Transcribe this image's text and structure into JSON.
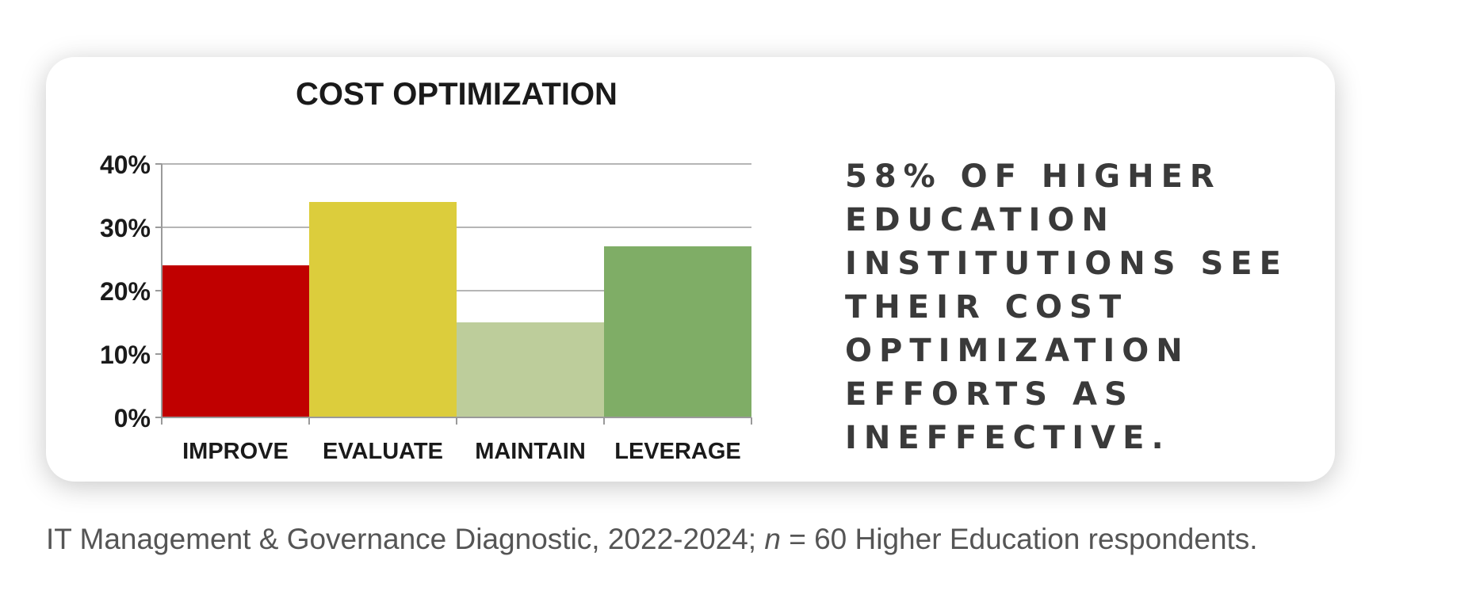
{
  "chart_data": {
    "type": "bar",
    "title": "COST OPTIMIZATION",
    "categories": [
      "IMPROVE",
      "EVALUATE",
      "MAINTAIN",
      "LEVERAGE"
    ],
    "values": [
      24,
      34,
      15,
      27
    ],
    "colors": [
      "#c00000",
      "#dccd3c",
      "#bdcd9b",
      "#7fad66"
    ],
    "yticks": [
      "0%",
      "10%",
      "20%",
      "30%",
      "40%"
    ],
    "ylim": [
      0,
      40
    ],
    "grid": true,
    "legend": "none"
  },
  "stat_text": "58% of higher education institutions see their cost optimization efforts as ineffective.",
  "caption": {
    "before": "IT Management & Governance Diagnostic, 2022-2024; ",
    "n_symbol": "n",
    "after": " = 60 Higher Education respondents."
  }
}
